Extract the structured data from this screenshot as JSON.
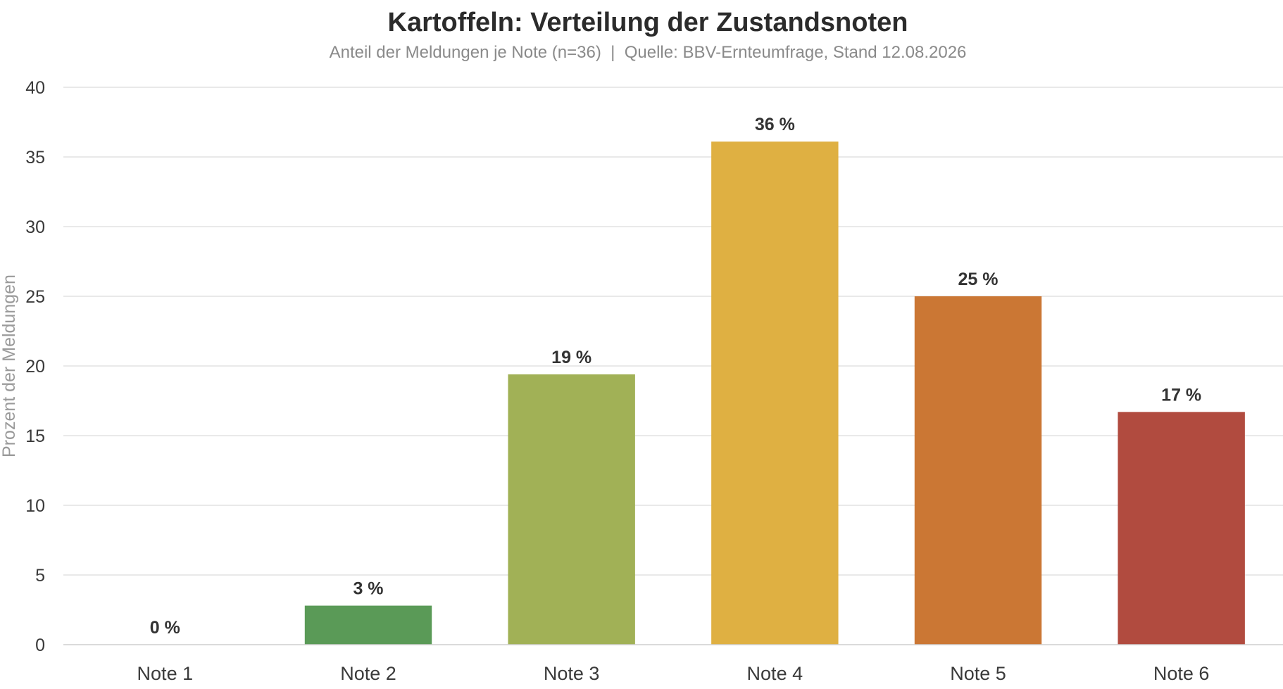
{
  "chart_data": {
    "type": "bar",
    "title": "Kartoffeln: Verteilung der Zustandsnoten",
    "subtitle": "Anteil der Meldungen je Note (n=36)  |  Quelle: BBV-Ernteumfrage, Stand 12.08.2026",
    "xlabel": "",
    "ylabel": "Prozent der Meldungen",
    "ylim": [
      0,
      40
    ],
    "yticks": [
      0,
      5,
      10,
      15,
      20,
      25,
      30,
      35,
      40
    ],
    "grid": true,
    "categories": [
      "Note 1",
      "Note 2",
      "Note 3",
      "Note 4",
      "Note 5",
      "Note 6"
    ],
    "values": [
      0,
      2.8,
      19.4,
      36.1,
      25.0,
      16.7
    ],
    "data_labels": [
      "0 %",
      "3 %",
      "19 %",
      "36 %",
      "25 %",
      "17 %"
    ],
    "colors": [
      "#4e8f4a",
      "#5a9a57",
      "#a1b156",
      "#dfb042",
      "#cb7734",
      "#b14b3f"
    ]
  }
}
